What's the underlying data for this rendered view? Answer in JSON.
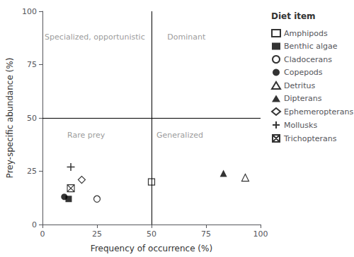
{
  "chart_data": {
    "type": "scatter",
    "xlabel": "Frequency of occurrence (%)",
    "ylabel": "Prey-specific abundance (%)",
    "xlim": [
      0,
      100
    ],
    "ylim": [
      0,
      100
    ],
    "xticks": [
      0,
      25,
      50,
      75,
      100
    ],
    "yticks": [
      0,
      25,
      50,
      75,
      100
    ],
    "grid": false,
    "legend": "right",
    "legend_title": "Diet item",
    "quadrant_lines": {
      "x": 50,
      "y": 50,
      "color": "#000000"
    },
    "annotations": [
      {
        "text": "Specialized, opportunistic",
        "x": 24,
        "y": 88,
        "color": "#808080"
      },
      {
        "text": "Dominant",
        "x": 66,
        "y": 88,
        "color": "#808080"
      },
      {
        "text": "Rare prey",
        "x": 20,
        "y": 42,
        "color": "#808080"
      },
      {
        "text": "Generalized",
        "x": 63,
        "y": 42,
        "color": "#808080"
      }
    ],
    "series": [
      {
        "name": "Amphipods",
        "marker": "square-open",
        "color": "#000000",
        "x": [
          50
        ],
        "values": [
          20
        ]
      },
      {
        "name": "Benthic algae",
        "marker": "square",
        "color": "#000000",
        "x": [
          12
        ],
        "values": [
          12
        ]
      },
      {
        "name": "Cladocerans",
        "marker": "circle-open",
        "color": "#000000",
        "x": [
          25
        ],
        "values": [
          12
        ]
      },
      {
        "name": "Copepods",
        "marker": "circle",
        "color": "#000000",
        "x": [
          10
        ],
        "values": [
          13
        ]
      },
      {
        "name": "Detritus",
        "marker": "triangle-open",
        "color": "#000000",
        "x": [
          93
        ],
        "values": [
          22
        ]
      },
      {
        "name": "Dipterans",
        "marker": "triangle",
        "color": "#000000",
        "x": [
          83
        ],
        "values": [
          24
        ]
      },
      {
        "name": "Ephemeropterans",
        "marker": "diamond-open",
        "color": "#000000",
        "x": [
          18
        ],
        "values": [
          21
        ]
      },
      {
        "name": "Mollusks",
        "marker": "plus",
        "color": "#000000",
        "x": [
          13
        ],
        "values": [
          27
        ]
      },
      {
        "name": "Trichopterans",
        "marker": "boxtimes",
        "color": "#000000",
        "x": [
          13
        ],
        "values": [
          17
        ]
      }
    ]
  }
}
